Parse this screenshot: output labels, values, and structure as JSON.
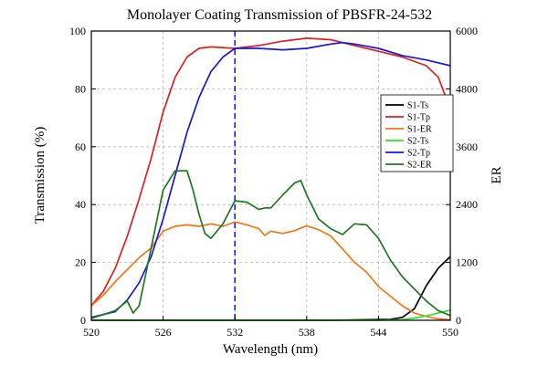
{
  "chart_data": {
    "type": "line",
    "title": "Monolayer Coating Transmission of PBSFR-24-532",
    "xlabel": "Wavelength (nm)",
    "ylabel": "Transmission (%)",
    "y2label": "ER",
    "xlim": [
      520,
      550
    ],
    "ylim": [
      0,
      100
    ],
    "y2lim": [
      0,
      6000
    ],
    "xticks": [
      520,
      526,
      532,
      538,
      544,
      550
    ],
    "yticks": [
      0,
      20,
      40,
      60,
      80,
      100
    ],
    "y2ticks": [
      0,
      1200,
      2400,
      3600,
      4800,
      6000
    ],
    "grid": true,
    "legend_position": "right",
    "reference_line": {
      "x": 532,
      "style": "dashed",
      "color": "#2020d0"
    },
    "series": [
      {
        "name": "S1-Ts",
        "axis": "left",
        "color": "#000000",
        "x": [
          520,
          540,
          545,
          546,
          547,
          548,
          549,
          550
        ],
        "y": [
          0,
          0,
          0.3,
          1,
          4,
          12,
          18,
          22
        ]
      },
      {
        "name": "S1-Tp",
        "axis": "left",
        "color": "#e02020",
        "x": [
          520,
          521,
          522,
          523,
          524,
          525,
          526,
          527,
          528,
          529,
          530,
          532,
          534,
          536,
          538,
          540,
          542,
          544,
          546,
          548,
          549,
          550
        ],
        "y": [
          5,
          10,
          18,
          29,
          42,
          56,
          72,
          84,
          91,
          94,
          94.5,
          94,
          95,
          96.5,
          97.5,
          97,
          95,
          93,
          91,
          88,
          84,
          73
        ]
      },
      {
        "name": "S1-ER",
        "axis": "right",
        "color": "#f07818",
        "x": [
          520,
          521,
          522,
          523,
          524,
          525,
          526,
          527,
          528,
          529,
          530,
          531,
          532,
          533,
          534,
          534.5,
          535,
          536,
          537,
          538,
          539,
          540,
          541,
          542,
          543,
          544,
          545,
          546,
          547,
          548,
          549,
          550
        ],
        "y": [
          300,
          520,
          800,
          1050,
          1300,
          1500,
          1850,
          1950,
          1980,
          1950,
          2000,
          1950,
          2040,
          1980,
          1900,
          1760,
          1850,
          1800,
          1860,
          1960,
          1880,
          1750,
          1480,
          1200,
          1000,
          700,
          500,
          300,
          150,
          80,
          30,
          10
        ]
      },
      {
        "name": "S2-Ts",
        "axis": "left",
        "color": "#30e030",
        "x": [
          520,
          544,
          546,
          547,
          548,
          549,
          550
        ],
        "y": [
          0,
          0,
          0.2,
          0.8,
          1.5,
          2.5,
          3.5
        ]
      },
      {
        "name": "S2-Tp",
        "axis": "left",
        "color": "#1818d8",
        "x": [
          520,
          522,
          523,
          524,
          525,
          526,
          527,
          528,
          529,
          530,
          531,
          532,
          534,
          536,
          538,
          540,
          541,
          542,
          544,
          546,
          548,
          550
        ],
        "y": [
          1,
          3,
          7,
          13,
          22,
          35,
          50,
          65,
          77,
          86,
          91,
          94,
          94,
          93.5,
          94,
          95.5,
          96,
          95.5,
          94,
          91.5,
          90,
          88
        ]
      },
      {
        "name": "S2-ER",
        "axis": "right",
        "color": "#1e7a1e",
        "x": [
          520,
          522,
          523,
          523.5,
          524,
          525,
          526,
          527,
          528,
          528.5,
          529,
          529.5,
          530,
          531,
          532,
          533,
          534,
          534.5,
          535,
          536,
          537,
          537.5,
          538,
          539,
          540,
          541,
          542,
          543,
          544,
          545,
          546,
          547,
          548,
          549,
          550
        ],
        "y": [
          40,
          200,
          400,
          150,
          300,
          1500,
          2700,
          3100,
          3100,
          2700,
          2200,
          1800,
          1700,
          2000,
          2480,
          2450,
          2300,
          2330,
          2330,
          2600,
          2850,
          2900,
          2600,
          2100,
          1900,
          1780,
          2000,
          1980,
          1700,
          1250,
          900,
          650,
          400,
          200,
          100
        ]
      }
    ]
  }
}
